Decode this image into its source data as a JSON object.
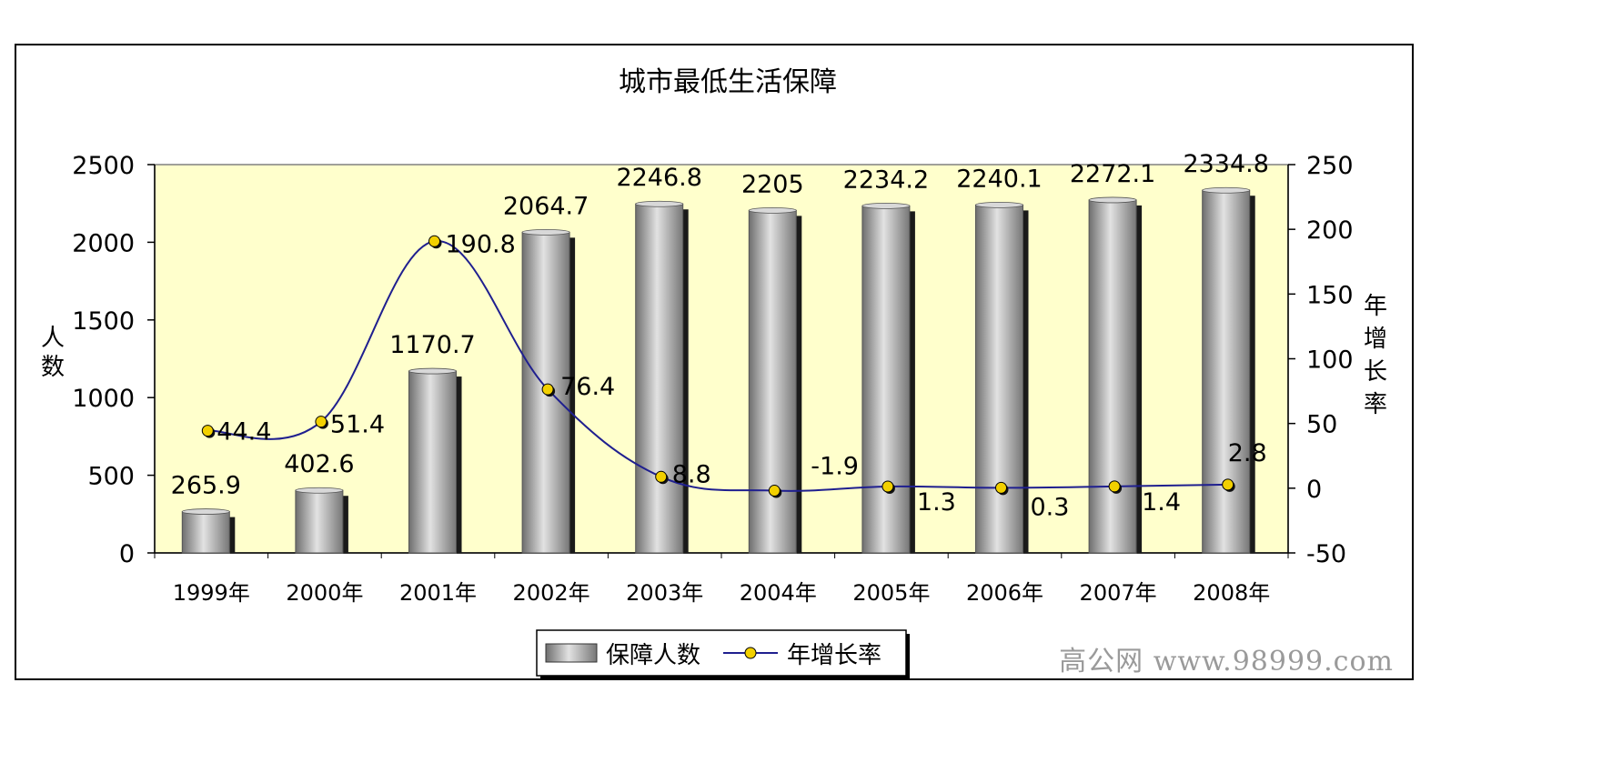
{
  "watermark": "高公网 www.98999.com",
  "chart_data": {
    "type": "bar",
    "title": "城市最低生活保障",
    "categories": [
      "1999年",
      "2000年",
      "2001年",
      "2002年",
      "2003年",
      "2004年",
      "2005年",
      "2006年",
      "2007年",
      "2008年"
    ],
    "series": [
      {
        "name": "保障人数",
        "type": "bar",
        "axis": "left",
        "values": [
          265.9,
          402.6,
          1170.7,
          2064.7,
          2246.8,
          2205,
          2234.2,
          2240.1,
          2272.1,
          2334.8
        ],
        "labels": [
          "265.9",
          "402.6",
          "1170.7",
          "2064.7",
          "2246.8",
          "2205",
          "2234.2",
          "2240.1",
          "2272.1",
          "2334.8"
        ]
      },
      {
        "name": "年增长率",
        "type": "line",
        "axis": "right",
        "values": [
          44.4,
          51.4,
          190.8,
          76.4,
          8.8,
          -1.9,
          1.3,
          0.3,
          1.4,
          2.8
        ],
        "labels": [
          "44.4",
          "51.4",
          "190.8",
          "76.4",
          "8.8",
          "-1.9",
          "1.3",
          "0.3",
          "1.4",
          "2.8"
        ]
      }
    ],
    "ylabel": "人数",
    "y2label": "年增长率",
    "ylim": [
      0,
      2500
    ],
    "y2lim": [
      -50,
      250
    ],
    "yticks": [
      "0",
      "500",
      "1000",
      "1500",
      "2000",
      "2500"
    ],
    "y2ticks": [
      "-50",
      "0",
      "50",
      "100",
      "150",
      "200",
      "250"
    ],
    "grid": false,
    "legend_position": "bottom",
    "colors": {
      "plot_bg": "#FFFFCC",
      "bar": "#A6A6A6",
      "line": "#1F1F8F",
      "marker": "#F2D000"
    }
  }
}
